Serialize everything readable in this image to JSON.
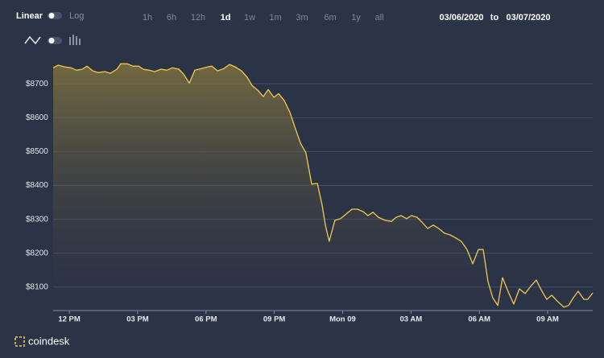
{
  "controls": {
    "scales": [
      "Linear",
      "Log"
    ],
    "active_scale": "Linear",
    "ranges": [
      "1h",
      "6h",
      "12h",
      "1d",
      "1w",
      "1m",
      "3m",
      "6m",
      "1y",
      "all"
    ],
    "active_range": "1d",
    "date_from": "03/06/2020",
    "date_sep": "to",
    "date_to": "03/07/2020"
  },
  "brand": "coindesk",
  "chart_data": {
    "type": "area",
    "x": [
      -0.71,
      -0.49,
      -0.21,
      0.07,
      0.32,
      0.57,
      0.78,
      1.03,
      1.27,
      1.56,
      1.8,
      2.09,
      2.26,
      2.55,
      2.79,
      3.04,
      3.25,
      3.5,
      3.75,
      4.03,
      4.28,
      4.52,
      4.81,
      5.02,
      5.27,
      5.51,
      5.8,
      6.08,
      6.26,
      6.51,
      6.79,
      7.03,
      7.28,
      7.56,
      7.81,
      8.02,
      8.27,
      8.52,
      8.73,
      8.98,
      9.19,
      9.44,
      9.69,
      9.93,
      10.15,
      10.39,
      10.64,
      10.89,
      11.1,
      11.24,
      11.41,
      11.66,
      11.91,
      12.16,
      12.41,
      12.65,
      12.9,
      13.11,
      13.33,
      13.57,
      13.86,
      14.14,
      14.35,
      14.56,
      14.81,
      15.02,
      15.27,
      15.48,
      15.73,
      15.98,
      16.22,
      16.47,
      16.72,
      16.97,
      17.21,
      17.46,
      17.71,
      17.96,
      18.17,
      18.38,
      18.59,
      18.81,
      19.02,
      19.26,
      19.51,
      19.76,
      20.01,
      20.25,
      20.5,
      20.71,
      20.96,
      21.18,
      21.42,
      21.71,
      21.92,
      22.13,
      22.34,
      22.59,
      22.76,
      22.98
    ],
    "series": [
      {
        "color": "#f2c94c",
        "values": [
          8747,
          8755,
          8750,
          8747,
          8740,
          8743,
          8752,
          8738,
          8733,
          8736,
          8731,
          8743,
          8759,
          8759,
          8752,
          8752,
          8743,
          8740,
          8736,
          8743,
          8740,
          8747,
          8743,
          8728,
          8702,
          8740,
          8745,
          8750,
          8752,
          8738,
          8745,
          8757,
          8750,
          8738,
          8719,
          8695,
          8681,
          8662,
          8683,
          8660,
          8671,
          8650,
          8615,
          8567,
          8525,
          8496,
          8404,
          8406,
          8342,
          8283,
          8235,
          8297,
          8302,
          8316,
          8330,
          8330,
          8323,
          8311,
          8321,
          8306,
          8297,
          8294,
          8306,
          8311,
          8302,
          8311,
          8306,
          8292,
          8273,
          8283,
          8273,
          8259,
          8254,
          8245,
          8235,
          8211,
          8169,
          8211,
          8211,
          8117,
          8069,
          8046,
          8128,
          8088,
          8050,
          8095,
          8081,
          8102,
          8121,
          8093,
          8064,
          8076,
          8059,
          8041,
          8046,
          8069,
          8088,
          8064,
          8064,
          8083
        ]
      }
    ],
    "xlim": [
      -0.71,
      22.98
    ],
    "xticks": [
      {
        "value": 0,
        "label": "12 PM"
      },
      {
        "value": 3,
        "label": "03 PM"
      },
      {
        "value": 6,
        "label": "06 PM"
      },
      {
        "value": 9,
        "label": "09 PM"
      },
      {
        "value": 12,
        "label": "Mon 09"
      },
      {
        "value": 15,
        "label": "03 AM"
      },
      {
        "value": 18,
        "label": "06 AM"
      },
      {
        "value": 21,
        "label": "09 AM"
      }
    ],
    "ylim": [
      8031,
      8800
    ],
    "yticks": [
      {
        "value": 8100,
        "label": "$8100"
      },
      {
        "value": 8200,
        "label": "$8200"
      },
      {
        "value": 8300,
        "label": "$8300"
      },
      {
        "value": 8400,
        "label": "$8400"
      },
      {
        "value": 8500,
        "label": "$8500"
      },
      {
        "value": 8600,
        "label": "$8600"
      },
      {
        "value": 8700,
        "label": "$8700"
      }
    ],
    "grid": true
  }
}
